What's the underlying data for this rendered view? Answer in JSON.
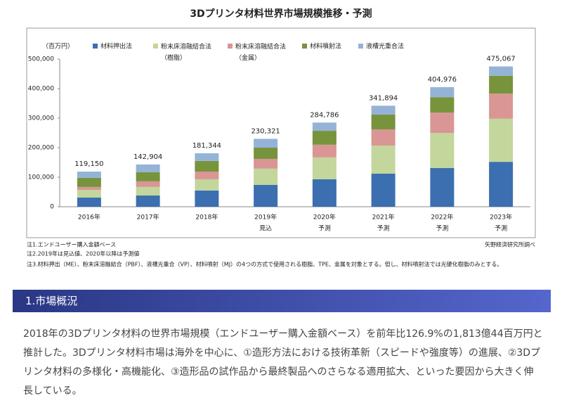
{
  "chart_data": {
    "type": "stacked_bar",
    "title": "3Dプリンタ材料世界市場規模推移・予測",
    "unit_label": "（百万円）",
    "categories": [
      "2016年",
      "2017年",
      "2018年",
      "2019年",
      "2020年",
      "2021年",
      "2022年",
      "2023年"
    ],
    "category_notes": [
      null,
      null,
      null,
      "見込",
      "予測",
      "予測",
      "予測",
      "予測"
    ],
    "series": [
      {
        "name": "材料押出法",
        "color": "#3b6fb0",
        "values": [
          31000,
          38000,
          55000,
          74000,
          93000,
          112000,
          131000,
          152000
        ]
      },
      {
        "name": "粉末床溶融結合法\n（樹脂）",
        "color": "#c3d69b",
        "values": [
          26000,
          29000,
          38000,
          55000,
          74000,
          95000,
          119000,
          146000
        ]
      },
      {
        "name": "粉末床溶融結合法\n（金属）",
        "color": "#d99694",
        "values": [
          10000,
          19000,
          26000,
          33000,
          43000,
          55000,
          69000,
          85000
        ]
      },
      {
        "name": "材料噴射法",
        "color": "#77933c",
        "values": [
          31000,
          31000,
          36000,
          38000,
          47000,
          50000,
          52000,
          60000
        ]
      },
      {
        "name": "液槽光重合法",
        "color": "#95b3d7",
        "values": [
          21000,
          26000,
          26000,
          30000,
          28000,
          30000,
          34000,
          32000
        ]
      }
    ],
    "totals": [
      119150,
      142904,
      181344,
      230321,
      284786,
      341894,
      404976,
      475067
    ],
    "total_labels": [
      "119,150",
      "142,904",
      "181,344",
      "230,321",
      "284,786",
      "341,894",
      "404,976",
      "475,067"
    ],
    "ylim": [
      0,
      500000
    ],
    "yticks": [
      0,
      {
        "value": 100000,
        "label": "100,000"
      },
      {
        "value": 200000,
        "label": "200,000"
      },
      {
        "value": 300000,
        "label": "300,000"
      },
      {
        "value": 400000,
        "label": "400,000"
      },
      {
        "value": 500000,
        "label": "500,000"
      }
    ],
    "grid": false,
    "notes": [
      "注1.エンドユーザー購入金額ベース",
      "注2.2019年は見込値、2020年以降は予測値",
      "注3.材料押出（ME）、粉末床溶融結合（PBF）、液槽光重合（VP）、材料噴射（MJ）の4つの方式で使用される樹脂、TPE、金属を対象とする。但し、材料噴射法では光硬化樹脂のみとする。"
    ],
    "source": "矢野経済研究所調べ"
  },
  "section": {
    "heading": "1.市場概況",
    "paragraph": "2018年の3Dプリンタ材料の世界市場規模（エンドユーザー購入金額ベース）を前年比126.9%の1,813億44百万円と推計した。3Dプリンタ材料市場は海外を中心に、①造形方法における技術革新（スピードや強度等）の進展、②3Dプリンタ材料の多様化・高機能化、③造形品の試作品から最終製品へのさらなる適用拡大、といった要因から大きく伸長している。"
  }
}
